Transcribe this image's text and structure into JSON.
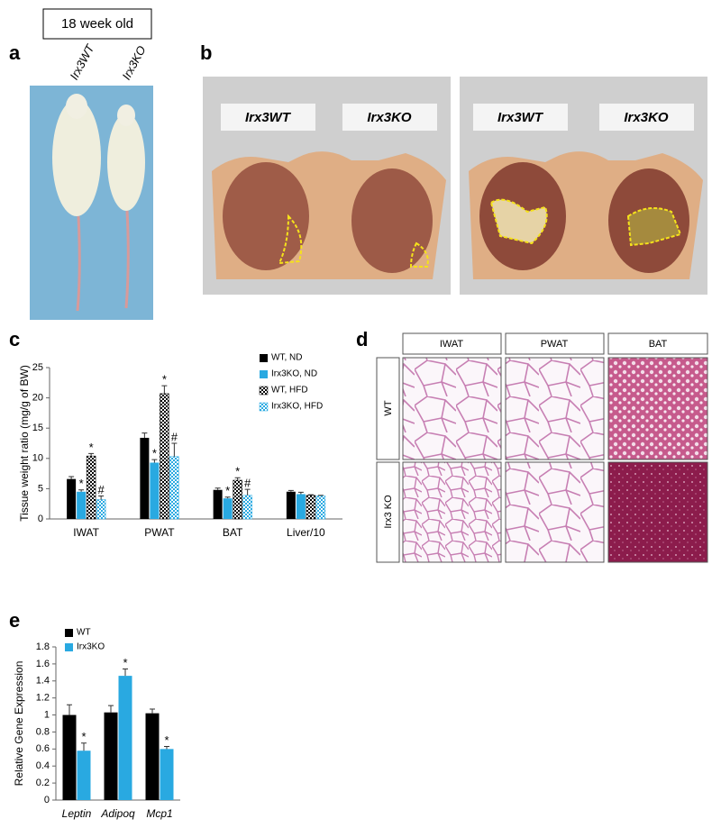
{
  "panels": {
    "a": {
      "label": "a",
      "box": "18 week old",
      "labels": [
        "Irx3WT",
        "Irx3KO"
      ]
    },
    "b": {
      "label": "b",
      "photos": [
        [
          "Irx3WT",
          "Irx3KO"
        ],
        [
          "Irx3WT",
          "Irx3KO"
        ]
      ]
    },
    "c": {
      "label": "c"
    },
    "d": {
      "label": "d",
      "columns": [
        "IWAT",
        "PWAT",
        "BAT"
      ],
      "rows": [
        "WT",
        "Irx3 KO"
      ]
    },
    "e": {
      "label": "e"
    }
  },
  "chart_data": [
    {
      "type": "bar",
      "y_label": "Tissue weight ratio (mg/g of BW)",
      "categories": [
        "IWAT",
        "PWAT",
        "BAT",
        "Liver/10"
      ],
      "ylim": [
        0,
        25
      ],
      "yticks": [
        0,
        5,
        10,
        15,
        20,
        25
      ],
      "grid": false,
      "series": [
        {
          "name": "WT, ND",
          "color": "#000000",
          "values": [
            6.6,
            13.4,
            4.8,
            4.5
          ],
          "errors": [
            0.4,
            0.8,
            0.3,
            0.2
          ],
          "labels": [
            null,
            null,
            null,
            null
          ]
        },
        {
          "name": "Irx3KO, ND",
          "color": "#29a9e1",
          "values": [
            4.5,
            9.3,
            3.4,
            4.1
          ],
          "errors": [
            0.3,
            0.5,
            0.2,
            0.3
          ],
          "labels": [
            "*",
            "*",
            "*",
            null
          ]
        },
        {
          "name": "WT, HFD",
          "color": "#000000",
          "pattern": "checker",
          "values": [
            10.4,
            20.7,
            6.4,
            3.9
          ],
          "errors": [
            0.4,
            1.3,
            0.4,
            0.1
          ],
          "labels": [
            "*",
            "*",
            "*",
            null
          ]
        },
        {
          "name": "Irx3KO, HFD",
          "color": "#29a9e1",
          "pattern": "checker",
          "values": [
            3.2,
            10.3,
            3.9,
            3.8
          ],
          "errors": [
            0.6,
            2.2,
            1.0,
            0.1
          ],
          "labels": [
            "#",
            "#",
            "#",
            null
          ]
        }
      ]
    },
    {
      "type": "bar",
      "y_label": "Relative Gene Expression",
      "categories": [
        "Leptin",
        "Adipoq",
        "Mcp1"
      ],
      "ylim": [
        0,
        1.8
      ],
      "yticks": [
        0,
        0.2,
        0.4,
        0.6,
        0.8,
        1,
        1.2,
        1.4,
        1.6,
        1.8
      ],
      "grid": false,
      "series": [
        {
          "name": "WT",
          "color": "#000000",
          "values": [
            1.0,
            1.03,
            1.02
          ],
          "errors": [
            0.12,
            0.08,
            0.05
          ],
          "labels": [
            null,
            null,
            null
          ]
        },
        {
          "name": "Irx3KO",
          "color": "#29a9e1",
          "values": [
            0.58,
            1.46,
            0.6
          ],
          "errors": [
            0.09,
            0.08,
            0.03
          ],
          "labels": [
            "*",
            "*",
            "*"
          ]
        }
      ]
    }
  ]
}
